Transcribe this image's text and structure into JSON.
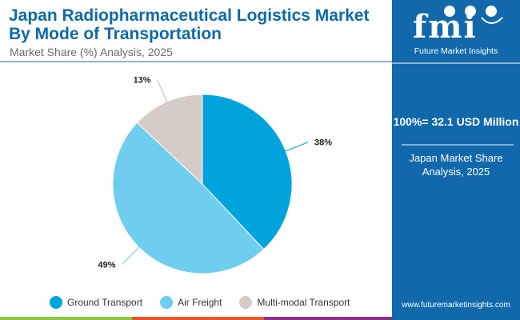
{
  "header": {
    "title": "Japan Radiopharmaceutical Logistics Market By Mode of Transportation",
    "subtitle": "Market Share (%) Analysis, 2025"
  },
  "sidebar": {
    "logo_letters": "fmi",
    "logo_text": "Future Market Insights",
    "total_label": "100%= 32.1 USD Million",
    "subtitle": "Japan Market Share Analysis, 2025",
    "url": "www.futuremarketinsights.com"
  },
  "colors": {
    "brand": "#1168ab",
    "bottom_bar": [
      "#8dc63f",
      "#e8582a",
      "#8b2f8c"
    ]
  },
  "chart_data": {
    "type": "pie",
    "title": "Japan Radiopharmaceutical Logistics Market By Mode of Transportation",
    "subtitle": "Market Share (%) Analysis, 2025",
    "categories": [
      "Ground Transport",
      "Air Freight",
      "Multi-modal Transport"
    ],
    "values": [
      38,
      49,
      13
    ],
    "labels": [
      "38%",
      "49%",
      "13%"
    ],
    "colors": [
      "#00a3dc",
      "#6fcdf0",
      "#d6cbc6"
    ],
    "start_angle_deg": 0,
    "direction": "clockwise",
    "legend_position": "bottom"
  }
}
